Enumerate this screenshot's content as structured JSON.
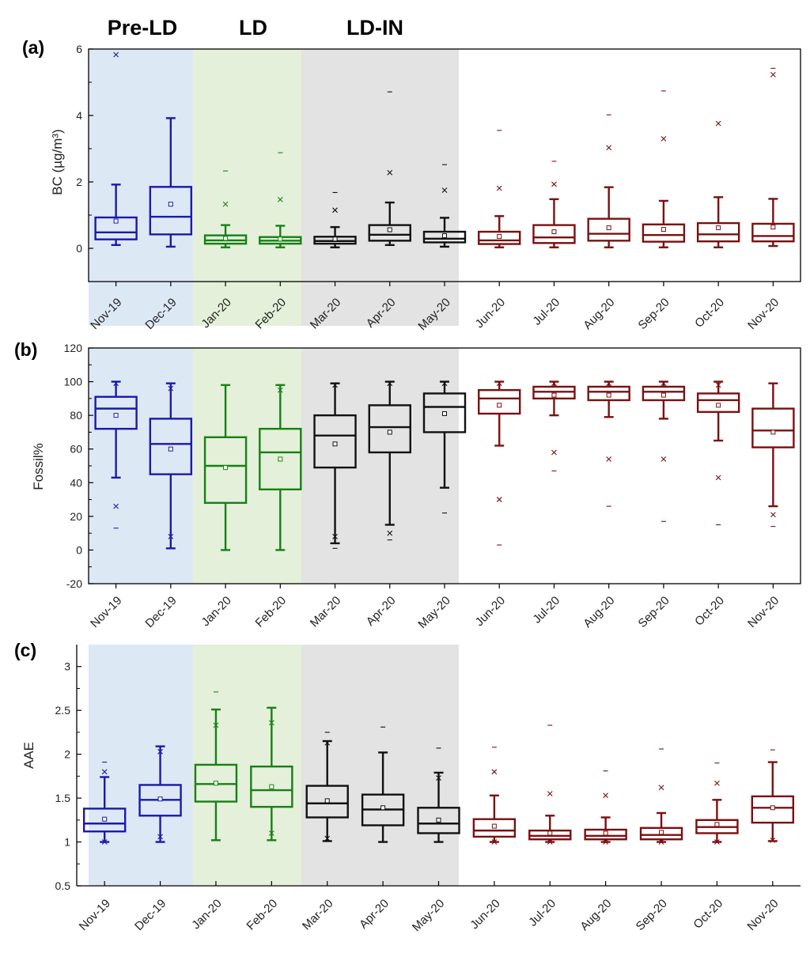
{
  "periods": [
    {
      "label": "Pre-LD",
      "color": "#dde8f5"
    },
    {
      "label": "LD",
      "color": "#e4f0d9"
    },
    {
      "label": "LD-IN",
      "color": "#e3e3e3"
    }
  ],
  "series_colors": {
    "pre_ld": "#1a1aa8",
    "ld": "#168016",
    "ld_in": "#111111",
    "post": "#7a1010"
  },
  "chart_data": [
    {
      "panel": "(a)",
      "type": "box",
      "ylabel": "BC (µg/m³)",
      "ylim": [
        -1,
        6
      ],
      "yticks": [
        "0",
        "2",
        "4",
        "6"
      ],
      "ytick_values": [
        0,
        2,
        4,
        6
      ],
      "categories": [
        "Nov-19",
        "Dec-19",
        "Jan-20",
        "Feb-20",
        "Mar-20",
        "Apr-20",
        "May-20",
        "Jun-20",
        "Jul-20",
        "Aug-20",
        "Sep-20",
        "Oct-20",
        "Nov-20"
      ],
      "groups": [
        "pre_ld",
        "pre_ld",
        "ld",
        "ld",
        "ld_in",
        "ld_in",
        "ld_in",
        "post",
        "post",
        "post",
        "post",
        "post",
        "post"
      ],
      "boxes": [
        {
          "min": 0.1,
          "q1": 0.27,
          "median": 0.48,
          "q3": 0.93,
          "max": 1.92,
          "mean": 0.82,
          "x_upper": 5.83,
          "dash_upper": null,
          "x_lower": null,
          "dash_lower": null
        },
        {
          "min": 0.05,
          "q1": 0.42,
          "median": 0.95,
          "q3": 1.85,
          "max": 3.92,
          "mean": 1.33,
          "x_upper": null,
          "dash_upper": null,
          "x_lower": null,
          "dash_lower": null
        },
        {
          "min": 0.03,
          "q1": 0.14,
          "median": 0.24,
          "q3": 0.39,
          "max": 0.7,
          "mean": 0.3,
          "x_upper": 1.33,
          "dash_upper": 2.33,
          "x_lower": null,
          "dash_lower": null
        },
        {
          "min": 0.03,
          "q1": 0.14,
          "median": 0.23,
          "q3": 0.34,
          "max": 0.68,
          "mean": 0.28,
          "x_upper": 1.47,
          "dash_upper": 2.88,
          "x_lower": null,
          "dash_lower": null
        },
        {
          "min": 0.03,
          "q1": 0.14,
          "median": 0.22,
          "q3": 0.35,
          "max": 0.64,
          "mean": 0.28,
          "x_upper": 1.15,
          "dash_upper": 1.68,
          "x_lower": null,
          "dash_lower": null
        },
        {
          "min": 0.1,
          "q1": 0.23,
          "median": 0.41,
          "q3": 0.7,
          "max": 1.38,
          "mean": 0.56,
          "x_upper": 2.28,
          "dash_upper": 4.71,
          "x_lower": null,
          "dash_lower": null
        },
        {
          "min": 0.05,
          "q1": 0.18,
          "median": 0.29,
          "q3": 0.5,
          "max": 0.92,
          "mean": 0.38,
          "x_upper": 1.75,
          "dash_upper": 2.52,
          "x_lower": null,
          "dash_lower": null
        },
        {
          "min": 0.03,
          "q1": 0.13,
          "median": 0.24,
          "q3": 0.5,
          "max": 0.97,
          "mean": 0.36,
          "x_upper": 1.81,
          "dash_upper": 3.55,
          "x_lower": null,
          "dash_lower": null
        },
        {
          "min": 0.03,
          "q1": 0.16,
          "median": 0.33,
          "q3": 0.7,
          "max": 1.48,
          "mean": 0.5,
          "x_upper": 1.93,
          "dash_upper": 2.62,
          "x_lower": null,
          "dash_lower": null
        },
        {
          "min": 0.03,
          "q1": 0.23,
          "median": 0.44,
          "q3": 0.89,
          "max": 1.84,
          "mean": 0.62,
          "x_upper": 3.03,
          "dash_upper": 4.02,
          "x_lower": null,
          "dash_lower": null
        },
        {
          "min": 0.03,
          "q1": 0.2,
          "median": 0.4,
          "q3": 0.72,
          "max": 1.43,
          "mean": 0.57,
          "x_upper": 3.3,
          "dash_upper": 4.74,
          "x_lower": null,
          "dash_lower": null
        },
        {
          "min": 0.03,
          "q1": 0.21,
          "median": 0.42,
          "q3": 0.76,
          "max": 1.54,
          "mean": 0.62,
          "x_upper": 3.76,
          "dash_upper": null,
          "x_lower": null,
          "dash_lower": null
        },
        {
          "min": 0.07,
          "q1": 0.21,
          "median": 0.37,
          "q3": 0.74,
          "max": 1.49,
          "mean": 0.64,
          "x_upper": 5.23,
          "dash_upper": 5.42,
          "x_lower": null,
          "dash_lower": null
        }
      ]
    },
    {
      "panel": "(b)",
      "type": "box",
      "ylabel": "Fossil%",
      "ylim": [
        -20,
        120
      ],
      "yticks": [
        "-20",
        "0",
        "20",
        "40",
        "60",
        "80",
        "100",
        "120"
      ],
      "ytick_values": [
        -20,
        0,
        20,
        40,
        60,
        80,
        100,
        120
      ],
      "categories": [
        "Nov-19",
        "Dec-19",
        "Jan-20",
        "Feb-20",
        "Mar-20",
        "Apr-20",
        "May-20",
        "Jun-20",
        "Jul-20",
        "Aug-20",
        "Sep-20",
        "Oct-20",
        "Nov-20"
      ],
      "groups": [
        "pre_ld",
        "pre_ld",
        "ld",
        "ld",
        "ld_in",
        "ld_in",
        "ld_in",
        "post",
        "post",
        "post",
        "post",
        "post",
        "post"
      ],
      "boxes": [
        {
          "min": 43,
          "q1": 72,
          "median": 84,
          "q3": 91,
          "max": 100,
          "mean": 80,
          "x_upper": 99,
          "dash_upper": null,
          "x_lower": 26,
          "dash_lower": 13
        },
        {
          "min": 1,
          "q1": 45,
          "median": 63,
          "q3": 78,
          "max": 99,
          "mean": 60,
          "x_upper": 96,
          "dash_upper": null,
          "x_lower": 8,
          "dash_lower": null
        },
        {
          "min": 0,
          "q1": 28,
          "median": 50,
          "q3": 67,
          "max": 98,
          "mean": 49,
          "x_upper": null,
          "dash_upper": null,
          "x_lower": null,
          "dash_lower": null
        },
        {
          "min": 0,
          "q1": 36,
          "median": 58,
          "q3": 72,
          "max": 98,
          "mean": 54,
          "x_upper": 95,
          "dash_upper": null,
          "x_lower": null,
          "dash_lower": null
        },
        {
          "min": 4,
          "q1": 49,
          "median": 68,
          "q3": 80,
          "max": 99,
          "mean": 63,
          "x_upper": 98,
          "dash_upper": null,
          "x_lower": 8,
          "dash_lower": 1
        },
        {
          "min": 15,
          "q1": 58,
          "median": 73,
          "q3": 86,
          "max": 100,
          "mean": 70,
          "x_upper": 99,
          "dash_upper": null,
          "x_lower": 10,
          "dash_lower": 6
        },
        {
          "min": 37,
          "q1": 70,
          "median": 85,
          "q3": 93,
          "max": 100,
          "mean": 81,
          "x_upper": 99,
          "dash_upper": null,
          "x_lower": null,
          "dash_lower": 22
        },
        {
          "min": 62,
          "q1": 81,
          "median": 90,
          "q3": 95,
          "max": 100,
          "mean": 86,
          "x_upper": 99,
          "dash_upper": null,
          "x_lower": 30,
          "dash_lower": 3
        },
        {
          "min": 80,
          "q1": 90,
          "median": 94,
          "q3": 97,
          "max": 100,
          "mean": 92,
          "x_upper": 99,
          "dash_upper": null,
          "x_lower": 58,
          "dash_lower": 47
        },
        {
          "min": 79,
          "q1": 89,
          "median": 94,
          "q3": 97,
          "max": 100,
          "mean": 92,
          "x_upper": 99,
          "dash_upper": null,
          "x_lower": 54,
          "dash_lower": 26
        },
        {
          "min": 78,
          "q1": 89,
          "median": 94,
          "q3": 97,
          "max": 100,
          "mean": 92,
          "x_upper": 99,
          "dash_upper": null,
          "x_lower": 54,
          "dash_lower": 17
        },
        {
          "min": 65,
          "q1": 82,
          "median": 89,
          "q3": 93,
          "max": 100,
          "mean": 86,
          "x_upper": 98,
          "dash_upper": null,
          "x_lower": 43,
          "dash_lower": 15
        },
        {
          "min": 26,
          "q1": 61,
          "median": 71,
          "q3": 84,
          "max": 99,
          "mean": 70,
          "x_upper": null,
          "dash_upper": null,
          "x_lower": 21,
          "dash_lower": 14
        }
      ]
    },
    {
      "panel": "(c)",
      "type": "box",
      "ylabel": "AAE",
      "ylim": [
        0.5,
        3.25
      ],
      "yticks": [
        "0.5",
        "1",
        "1.5",
        "2",
        "2.5",
        "3"
      ],
      "ytick_values": [
        0.5,
        1,
        1.5,
        2,
        2.5,
        3
      ],
      "categories": [
        "Nov-19",
        "Dec-19",
        "Jan-20",
        "Feb-20",
        "Mar-20",
        "Apr-20",
        "May-20",
        "Jun-20",
        "Jul-20",
        "Aug-20",
        "Sep-20",
        "Oct-20",
        "Nov-20"
      ],
      "groups": [
        "pre_ld",
        "pre_ld",
        "ld",
        "ld",
        "ld_in",
        "ld_in",
        "ld_in",
        "post",
        "post",
        "post",
        "post",
        "post",
        "post"
      ],
      "boxes": [
        {
          "min": 1.0,
          "q1": 1.12,
          "median": 1.21,
          "q3": 1.38,
          "max": 1.74,
          "mean": 1.26,
          "x_upper": 1.8,
          "dash_upper": 1.91,
          "x_lower": 1.0,
          "dash_lower": null
        },
        {
          "min": 1.0,
          "q1": 1.3,
          "median": 1.48,
          "q3": 1.65,
          "max": 2.09,
          "mean": 1.49,
          "x_upper": 2.03,
          "dash_upper": null,
          "x_lower": 1.06,
          "dash_lower": null
        },
        {
          "min": 1.02,
          "q1": 1.46,
          "median": 1.66,
          "q3": 1.88,
          "max": 2.51,
          "mean": 1.67,
          "x_upper": 2.33,
          "dash_upper": 2.71,
          "x_lower": null,
          "dash_lower": null
        },
        {
          "min": 1.02,
          "q1": 1.4,
          "median": 1.59,
          "q3": 1.86,
          "max": 2.53,
          "mean": 1.63,
          "x_upper": 2.36,
          "dash_upper": null,
          "x_lower": 1.1,
          "dash_lower": null
        },
        {
          "min": 1.01,
          "q1": 1.28,
          "median": 1.44,
          "q3": 1.64,
          "max": 2.15,
          "mean": 1.47,
          "x_upper": 2.13,
          "dash_upper": 2.25,
          "x_lower": 1.04,
          "dash_lower": null
        },
        {
          "min": 1.0,
          "q1": 1.19,
          "median": 1.37,
          "q3": 1.54,
          "max": 2.02,
          "mean": 1.39,
          "x_upper": null,
          "dash_upper": 2.31,
          "x_lower": null,
          "dash_lower": null
        },
        {
          "min": 1.0,
          "q1": 1.1,
          "median": 1.21,
          "q3": 1.39,
          "max": 1.79,
          "mean": 1.25,
          "x_upper": 1.73,
          "dash_upper": 2.07,
          "x_lower": null,
          "dash_lower": null
        },
        {
          "min": 1.0,
          "q1": 1.06,
          "median": 1.13,
          "q3": 1.26,
          "max": 1.53,
          "mean": 1.18,
          "x_upper": 1.8,
          "dash_upper": 2.08,
          "x_lower": 1.0,
          "dash_lower": null
        },
        {
          "min": 1.0,
          "q1": 1.03,
          "median": 1.07,
          "q3": 1.13,
          "max": 1.3,
          "mean": 1.1,
          "x_upper": 1.55,
          "dash_upper": 2.33,
          "x_lower": 1.0,
          "dash_lower": null
        },
        {
          "min": 1.0,
          "q1": 1.03,
          "median": 1.07,
          "q3": 1.14,
          "max": 1.28,
          "mean": 1.1,
          "x_upper": 1.53,
          "dash_upper": 1.81,
          "x_lower": 1.0,
          "dash_lower": null
        },
        {
          "min": 1.0,
          "q1": 1.03,
          "median": 1.08,
          "q3": 1.16,
          "max": 1.33,
          "mean": 1.11,
          "x_upper": 1.62,
          "dash_upper": 2.06,
          "x_lower": 1.0,
          "dash_lower": null
        },
        {
          "min": 1.0,
          "q1": 1.1,
          "median": 1.17,
          "q3": 1.25,
          "max": 1.48,
          "mean": 1.2,
          "x_upper": 1.67,
          "dash_upper": 1.9,
          "x_lower": 1.0,
          "dash_lower": null
        },
        {
          "min": 1.01,
          "q1": 1.22,
          "median": 1.39,
          "q3": 1.52,
          "max": 1.91,
          "mean": 1.39,
          "x_upper": null,
          "dash_upper": 2.05,
          "x_lower": 1.02,
          "dash_lower": null
        }
      ]
    }
  ]
}
